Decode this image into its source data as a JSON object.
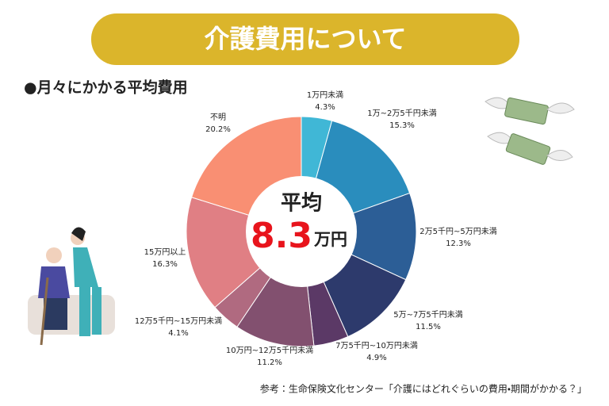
{
  "chart_data": {
    "type": "pie",
    "title": "介護費用について",
    "subtitle": "●月々にかかる平均費用",
    "categories": [
      "1万円未満",
      "1万~2万5千円未満",
      "2万5千円~5万円未満",
      "5万~7万5千円未満",
      "7万5千円~10万円未満",
      "10万円~12万5千円未満",
      "12万5千円~15万円未満",
      "15万円以上",
      "不明"
    ],
    "values": [
      4.3,
      15.3,
      12.3,
      11.5,
      4.9,
      11.2,
      4.1,
      16.3,
      20.2
    ],
    "value_labels": [
      "4.3%",
      "15.3%",
      "12.3%",
      "11.5%",
      "4.9%",
      "11.2%",
      "4.1%",
      "16.3%",
      "20.2%"
    ],
    "colors": [
      "#40b7d6",
      "#2a8dbd",
      "#2c5e96",
      "#2d3a6c",
      "#5b3966",
      "#82506f",
      "#b06a80",
      "#e07f84",
      "#f98f73"
    ],
    "center_label": "平均",
    "center_value": 8.3,
    "center_unit": "万円",
    "source": "参考：生命保険文化センター「介護にはどれぐらいの費用・期間がかかる？」"
  }
}
